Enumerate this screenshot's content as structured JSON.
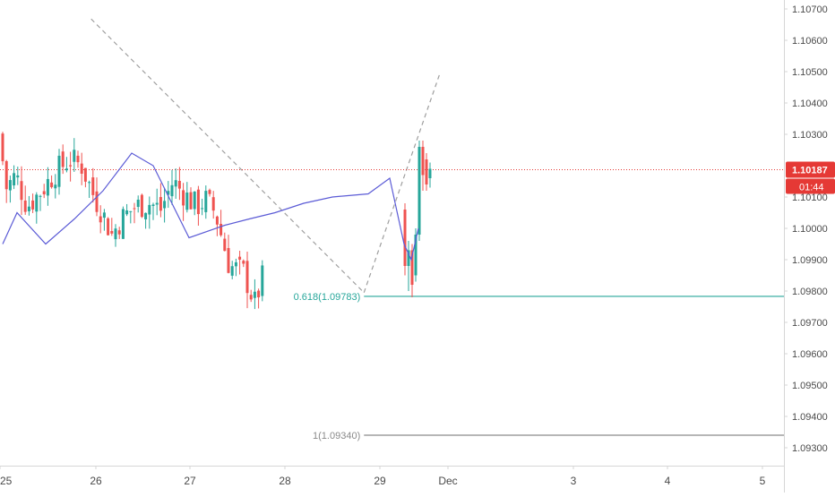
{
  "colors": {
    "up": "#26a69a",
    "down": "#ef5350",
    "overlay_line": "#5b5bd6",
    "price_line": "#e53935",
    "fib_618": "#26a69a",
    "fib_1": "#8a8a8a",
    "trend": "#9e9e9e",
    "axis_text": "#4a4a4a",
    "axis_border": "#d6d6d6"
  },
  "axis": {
    "x_labels": [
      "25",
      "26",
      "27",
      "28",
      "29",
      "Dec",
      "3",
      "4",
      "5"
    ],
    "y_labels": [
      "1.10700",
      "1.10600",
      "1.10500",
      "1.10400",
      "1.10300",
      "1.10100",
      "1.10000",
      "1.09900",
      "1.09800",
      "1.09700",
      "1.09600",
      "1.09500",
      "1.09400",
      "1.09300"
    ]
  },
  "price_badge": {
    "price": "1.10187",
    "countdown": "01:44"
  },
  "fib": {
    "label_618": "0.618(1.09783)",
    "label_1": "1(1.09340)"
  },
  "chart_data": {
    "type": "candlestick",
    "instrument_price_scale": "EURUSD-like, 5 decimals",
    "ylim": [
      1.0927,
      1.1075
    ],
    "x_axis": [
      "25",
      "26",
      "27",
      "28",
      "29",
      "Dec",
      "3",
      "4",
      "5"
    ],
    "current_price": 1.10187,
    "candle_close_path": [
      [
        0,
        1.103
      ],
      [
        0.08,
        1.1013
      ],
      [
        0.18,
        1.1017
      ],
      [
        0.3,
        1.1007
      ],
      [
        0.45,
        1.1012
      ],
      [
        0.6,
        1.1018
      ],
      [
        0.75,
        1.1022
      ],
      [
        0.88,
        1.102
      ],
      [
        1.0,
        1.1011
      ],
      [
        1.1,
        1.1005
      ],
      [
        1.2,
        1.0998
      ],
      [
        1.3,
        1.1003
      ],
      [
        1.45,
        1.1007
      ],
      [
        1.6,
        1.1008
      ],
      [
        1.72,
        1.1006
      ],
      [
        1.85,
        1.1015
      ],
      [
        2.0,
        1.101
      ],
      [
        2.1,
        1.1007
      ],
      [
        2.2,
        1.1009
      ],
      [
        2.3,
        1.1005
      ],
      [
        2.45,
        1.0988
      ],
      [
        2.6,
        1.0986
      ],
      [
        2.72,
        1.0976
      ],
      [
        2.82,
        1.0986
      ],
      [
        2.88,
        1.1023
      ],
      [
        2.95,
        1.1018
      ]
    ],
    "overlay_line": [
      [
        0,
        1.0995
      ],
      [
        0.1,
        1.1005
      ],
      [
        0.3,
        1.0995
      ],
      [
        0.5,
        1.1003
      ],
      [
        0.7,
        1.1012
      ],
      [
        0.9,
        1.1024
      ],
      [
        1.05,
        1.102
      ],
      [
        1.3,
        1.0997
      ],
      [
        1.55,
        1.1001
      ],
      [
        1.72,
        1.1003
      ],
      [
        1.9,
        1.1005
      ],
      [
        2.1,
        1.1008
      ],
      [
        2.3,
        1.101
      ],
      [
        2.55,
        1.1011
      ],
      [
        2.7,
        1.1016
      ],
      [
        2.8,
        1.0995
      ],
      [
        2.85,
        1.099
      ],
      [
        2.9,
        1.1
      ]
    ],
    "fib_levels": [
      {
        "ratio": 0.618,
        "price": 1.09783
      },
      {
        "ratio": 1,
        "price": 1.0934
      }
    ],
    "trend_lines": [
      {
        "from": [
          -0.05,
          1.10668
        ],
        "to": [
          2.85,
          1.09795
        ]
      },
      {
        "from": [
          2.85,
          1.09795
        ],
        "to": [
          3.66,
          1.10497
        ]
      }
    ]
  }
}
